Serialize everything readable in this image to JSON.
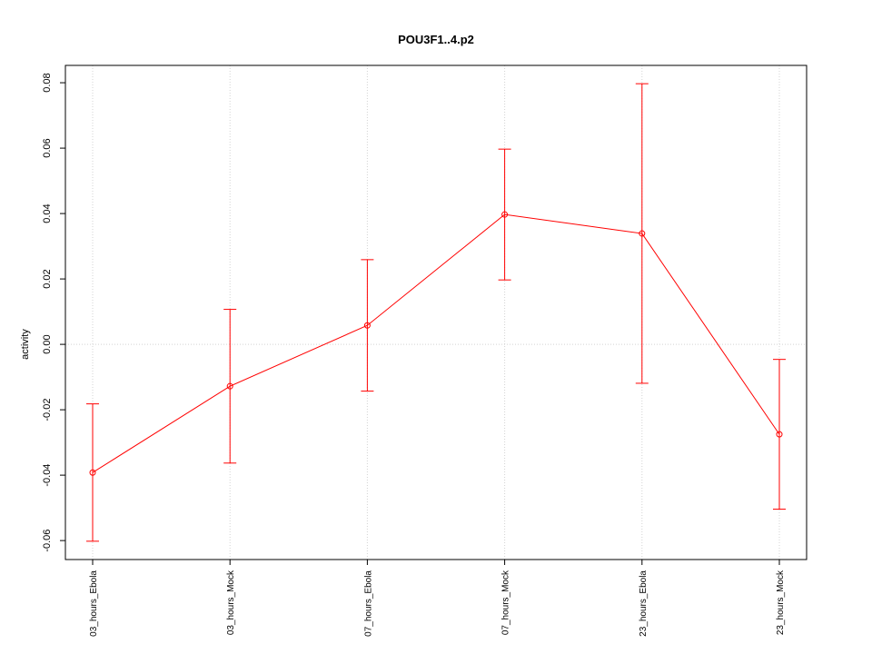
{
  "chart_data": {
    "type": "line",
    "title": "POU3F1..4.p2",
    "y_label": "activity",
    "categories": [
      "03_hours_Ebola",
      "03_hours_Mock",
      "07_hours_Ebola",
      "07_hours_Mock",
      "23_hours_Ebola",
      "23_hours_Mock"
    ],
    "series": [
      {
        "name": "activity",
        "color": "#ff0000",
        "values": [
          -0.0392,
          -0.0128,
          0.0058,
          0.0397,
          0.0339,
          -0.0275
        ],
        "errors": [
          0.021,
          0.0235,
          0.0201,
          0.02,
          0.0458,
          0.0229
        ]
      }
    ],
    "ylim": [
      -0.0658,
      0.0853
    ],
    "yticks": [
      -0.06,
      -0.04,
      -0.02,
      {
        "value": 0,
        "label": "0.00"
      },
      0.02,
      0.04,
      0.06,
      0.08
    ],
    "hline": 0,
    "grid": true
  }
}
